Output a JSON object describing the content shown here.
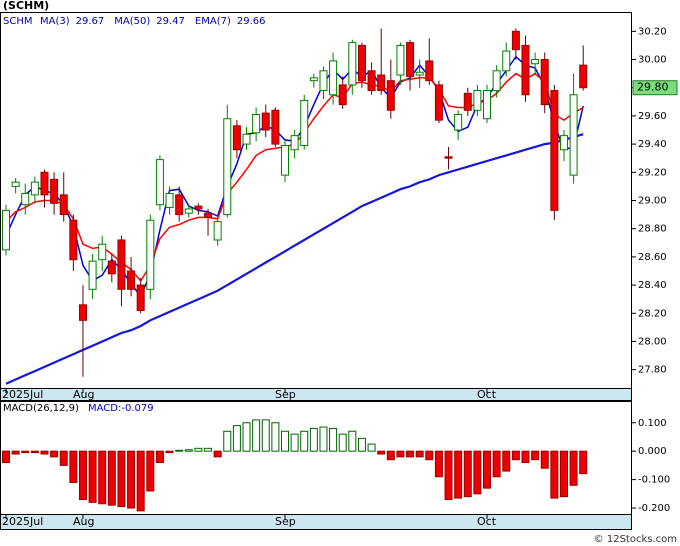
{
  "chart_data": [
    {
      "type": "candlestick",
      "title": "(SCHM)",
      "ticker": "SCHM",
      "categories": [
        "2025Jul",
        null,
        null,
        null,
        null,
        null,
        null,
        null,
        "Aug",
        null,
        null,
        null,
        null,
        null,
        null,
        null,
        null,
        null,
        null,
        null,
        null,
        null,
        null,
        null,
        null,
        null,
        null,
        null,
        null,
        "Sep",
        null,
        null,
        null,
        null,
        null,
        null,
        null,
        null,
        null,
        null,
        null,
        null,
        null,
        null,
        null,
        null,
        null,
        null,
        null,
        null,
        "Oct",
        null,
        null,
        null,
        null,
        null,
        null,
        null,
        null,
        null,
        null
      ],
      "open": [
        28.65,
        29.1,
        28.97,
        29.04,
        29.2,
        29.15,
        29.04,
        28.86,
        28.26,
        28.37,
        28.58,
        28.57,
        28.72,
        28.5,
        28.4,
        28.37,
        28.97,
        28.95,
        29.04,
        28.91,
        28.96,
        28.91,
        28.72,
        28.9,
        29.53,
        29.4,
        29.48,
        29.62,
        29.64,
        29.18,
        29.36,
        29.39,
        29.85,
        29.78,
        29.75,
        29.82,
        29.82,
        30.1,
        29.92,
        29.89,
        29.85,
        29.89,
        30.12,
        29.89,
        29.99,
        29.82,
        29.31,
        29.5,
        29.76,
        29.64,
        29.58,
        29.78,
        29.92,
        30.2,
        30.1,
        29.97,
        30.0,
        29.78,
        29.36,
        29.18,
        29.96
      ],
      "high": [
        28.97,
        29.16,
        29.12,
        29.17,
        29.22,
        29.2,
        29.2,
        28.9,
        28.4,
        28.62,
        28.75,
        28.62,
        28.75,
        28.6,
        28.45,
        28.9,
        29.32,
        29.1,
        29.1,
        28.97,
        28.98,
        28.94,
        28.88,
        29.68,
        29.57,
        29.52,
        29.66,
        29.68,
        29.66,
        29.43,
        29.5,
        29.75,
        29.9,
        29.95,
        30.05,
        29.88,
        30.14,
        30.12,
        29.98,
        30.22,
        30.0,
        30.12,
        30.14,
        30.0,
        30.15,
        29.85,
        29.38,
        29.64,
        29.8,
        29.82,
        29.82,
        29.96,
        30.12,
        30.22,
        30.17,
        30.05,
        30.05,
        29.82,
        29.5,
        29.9,
        30.1
      ],
      "low": [
        28.61,
        29.05,
        28.9,
        28.98,
        28.95,
        28.9,
        28.85,
        28.5,
        27.75,
        28.3,
        28.5,
        28.42,
        28.25,
        28.32,
        28.2,
        28.3,
        28.93,
        28.9,
        28.85,
        28.88,
        28.9,
        28.75,
        28.68,
        28.88,
        29.3,
        29.36,
        29.42,
        29.45,
        29.38,
        29.13,
        29.3,
        29.36,
        29.8,
        29.72,
        29.68,
        29.65,
        29.75,
        29.8,
        29.75,
        29.75,
        29.58,
        29.82,
        29.78,
        29.8,
        29.82,
        29.55,
        29.22,
        29.43,
        29.6,
        29.6,
        29.55,
        29.73,
        29.88,
        30.0,
        29.7,
        29.9,
        29.62,
        28.86,
        29.28,
        29.12,
        29.78
      ],
      "close": [
        28.93,
        29.13,
        29.05,
        29.13,
        29.04,
        28.98,
        28.9,
        28.58,
        28.15,
        28.57,
        28.69,
        28.48,
        28.37,
        28.37,
        28.22,
        28.86,
        29.29,
        29.05,
        28.9,
        28.94,
        28.94,
        28.88,
        28.85,
        29.58,
        29.36,
        29.47,
        29.61,
        29.5,
        29.4,
        29.39,
        29.46,
        29.71,
        29.87,
        29.92,
        29.99,
        29.68,
        30.12,
        29.85,
        29.78,
        29.78,
        29.64,
        30.1,
        29.88,
        29.91,
        29.85,
        29.57,
        29.3,
        29.61,
        29.64,
        29.78,
        29.78,
        29.92,
        30.06,
        30.07,
        29.75,
        30.0,
        29.68,
        28.93,
        29.46,
        29.75,
        29.8
      ],
      "up_color": "#008000",
      "down_color": "#ee0000",
      "price_label": "29.80",
      "series": [
        {
          "name": "MA(3)",
          "last": 29.67,
          "color": "#0000dd",
          "width": 1.5,
          "values": [
            28.75,
            28.9,
            29.04,
            29.1,
            29.07,
            29.05,
            28.97,
            28.82,
            28.54,
            28.43,
            28.47,
            28.58,
            28.51,
            28.41,
            28.32,
            28.48,
            28.79,
            29.07,
            29.08,
            28.96,
            28.93,
            28.92,
            28.89,
            29.1,
            29.26,
            29.47,
            29.48,
            29.53,
            29.5,
            29.43,
            29.42,
            29.52,
            29.68,
            29.83,
            29.93,
            29.86,
            29.93,
            29.88,
            29.92,
            29.8,
            29.73,
            29.84,
            29.87,
            29.96,
            29.88,
            29.78,
            29.57,
            29.49,
            29.52,
            29.68,
            29.73,
            29.83,
            29.92,
            30.02,
            29.96,
            29.94,
            29.81,
            29.54,
            29.36,
            29.38,
            29.67
          ]
        },
        {
          "name": "MA(50)",
          "last": 29.47,
          "color": "#1515dd",
          "width": 2.2,
          "values": [
            27.7,
            27.73,
            27.76,
            27.79,
            27.82,
            27.85,
            27.88,
            27.91,
            27.94,
            27.97,
            28.0,
            28.03,
            28.06,
            28.08,
            28.11,
            28.15,
            28.18,
            28.21,
            28.24,
            28.27,
            28.3,
            28.33,
            28.36,
            28.4,
            28.44,
            28.48,
            28.52,
            28.56,
            28.6,
            28.64,
            28.68,
            28.72,
            28.76,
            28.8,
            28.84,
            28.88,
            28.92,
            28.96,
            28.99,
            29.02,
            29.05,
            29.08,
            29.1,
            29.13,
            29.15,
            29.18,
            29.2,
            29.22,
            29.24,
            29.26,
            29.28,
            29.3,
            29.32,
            29.34,
            29.36,
            29.38,
            29.4,
            29.41,
            29.43,
            29.45,
            29.47
          ]
        },
        {
          "name": "EMA(7)",
          "last": 29.66,
          "color": "#ff0000",
          "width": 1.5,
          "values": [
            28.85,
            28.92,
            28.95,
            28.99,
            29.0,
            29.0,
            28.97,
            28.87,
            28.69,
            28.66,
            28.67,
            28.62,
            28.56,
            28.51,
            28.43,
            28.54,
            28.73,
            28.81,
            28.83,
            28.86,
            28.88,
            28.88,
            28.87,
            29.05,
            29.13,
            29.22,
            29.32,
            29.36,
            29.37,
            29.38,
            29.4,
            29.48,
            29.58,
            29.67,
            29.75,
            29.73,
            29.83,
            29.84,
            29.82,
            29.81,
            29.77,
            29.85,
            29.86,
            29.87,
            29.87,
            29.79,
            29.67,
            29.66,
            29.66,
            29.69,
            29.71,
            29.76,
            29.84,
            29.9,
            29.86,
            29.9,
            29.84,
            29.61,
            29.57,
            29.62,
            29.66
          ]
        }
      ],
      "ylim": [
        27.67,
        30.33
      ],
      "yticks": [
        {
          "value": 27.8,
          "label": "27.80"
        },
        {
          "value": 28.0,
          "label": "28.00"
        },
        {
          "value": 28.2,
          "label": "28.20"
        },
        {
          "value": 28.4,
          "label": "28.40"
        },
        {
          "value": 28.6,
          "label": "28.60"
        },
        {
          "value": 28.8,
          "label": "28.80"
        },
        {
          "value": 29.0,
          "label": "29.00"
        },
        {
          "value": 29.2,
          "label": "29.20"
        },
        {
          "value": 29.4,
          "label": "29.40"
        },
        {
          "value": 29.6,
          "label": "29.60"
        },
        {
          "value": 29.8,
          "label": "29.80"
        },
        {
          "value": 30.0,
          "label": "30.00"
        },
        {
          "value": 30.2,
          "label": "30.20"
        }
      ],
      "grid": false
    },
    {
      "type": "bar",
      "title": "MACD(26,12,9)",
      "subtitle": "MACD:-0.079",
      "categories": [
        "2025Jul",
        null,
        null,
        null,
        null,
        null,
        null,
        null,
        "Aug",
        null,
        null,
        null,
        null,
        null,
        null,
        null,
        null,
        null,
        null,
        null,
        null,
        null,
        null,
        null,
        null,
        null,
        null,
        null,
        null,
        "Sep",
        null,
        null,
        null,
        null,
        null,
        null,
        null,
        null,
        null,
        null,
        null,
        null,
        null,
        null,
        null,
        null,
        null,
        null,
        null,
        null,
        "Oct",
        null,
        null,
        null,
        null,
        null,
        null,
        null,
        null,
        null,
        null
      ],
      "values": [
        -0.04,
        -0.01,
        -0.005,
        -0.005,
        -0.01,
        -0.02,
        -0.05,
        -0.11,
        -0.17,
        -0.18,
        -0.185,
        -0.19,
        -0.195,
        -0.2,
        -0.21,
        -0.14,
        -0.04,
        -0.005,
        0.003,
        0.005,
        0.01,
        0.01,
        -0.02,
        0.07,
        0.09,
        0.1,
        0.11,
        0.11,
        0.1,
        0.07,
        0.06,
        0.07,
        0.08,
        0.085,
        0.08,
        0.06,
        0.07,
        0.045,
        0.025,
        -0.01,
        -0.03,
        -0.02,
        -0.02,
        -0.02,
        -0.03,
        -0.09,
        -0.17,
        -0.165,
        -0.16,
        -0.15,
        -0.13,
        -0.09,
        -0.07,
        -0.03,
        -0.04,
        -0.03,
        -0.06,
        -0.165,
        -0.16,
        -0.12,
        -0.079
      ],
      "up_color": "#006400",
      "down_color": "#ee0000",
      "ylim": [
        -0.221,
        0.173
      ],
      "yticks": [
        {
          "value": 0.1,
          "label": "0.100"
        },
        {
          "value": 0,
          "label": "0.000"
        },
        {
          "value": -0.1,
          "label": "-0.100"
        },
        {
          "value": -0.2,
          "label": "-0.200"
        }
      ],
      "grid": false
    }
  ],
  "footer": "© 12Stocks.com"
}
